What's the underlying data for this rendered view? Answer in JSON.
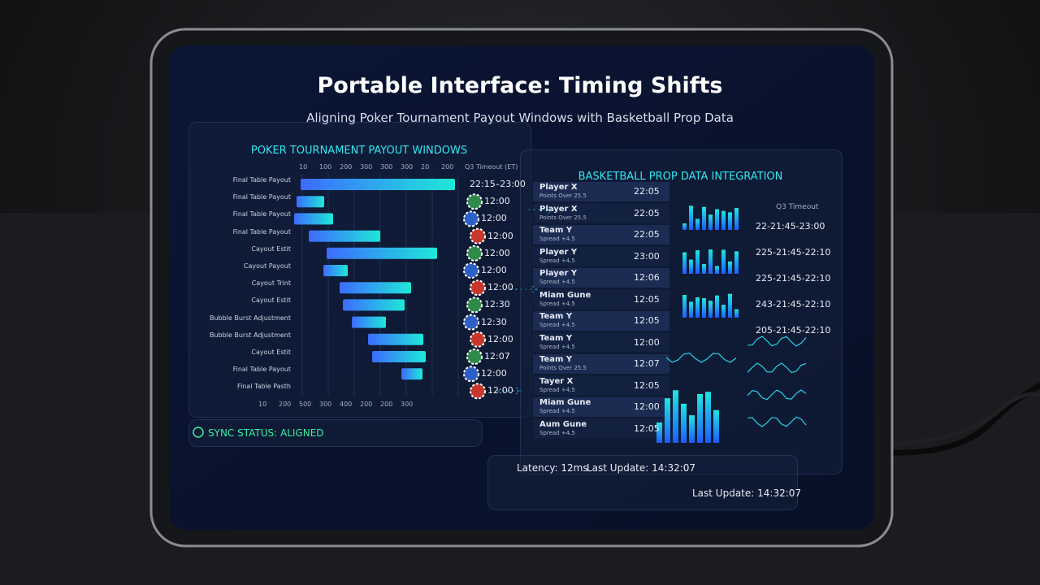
{
  "header": {
    "title": "Portable Interface: Timing Shifts",
    "subtitle": "Aligning Poker Tournament Payout Windows with Basketball Prop Data"
  },
  "poker_panel": {
    "title": "POKER TOURNAMENT PAYOUT WINDOWS",
    "top_axis": [
      "10",
      "100",
      "200",
      "300",
      "300",
      "300",
      "20",
      "200"
    ],
    "column_header": "Q3 Timeout (ET)",
    "rows": [
      {
        "label": "Final Table Payout",
        "time": "22:15–23:00"
      },
      {
        "label": "Final Table Payout",
        "time": "12:00"
      },
      {
        "label": "Final Table Payout",
        "time": "12:00"
      },
      {
        "label": "Final Table Payout",
        "time": "12:00"
      },
      {
        "label": "Cayout Estit",
        "time": "12:00"
      },
      {
        "label": "Cayout Payout",
        "time": "12:00"
      },
      {
        "label": "Cayout Trint",
        "time": "12:00"
      },
      {
        "label": "Cayout Estit",
        "time": "12:30"
      },
      {
        "label": "Bubble Burst Adjustment",
        "time": "12:30"
      },
      {
        "label": "Bubble Burst Adjustment",
        "time": "12:00"
      },
      {
        "label": "Cayout Estit",
        "time": "12:07"
      },
      {
        "label": "Final Table Payout",
        "time": "12:00"
      },
      {
        "label": "Final Table Pasth",
        "time": "12:00"
      }
    ],
    "bottom_axis": [
      "10",
      "200",
      "500",
      "300",
      "400",
      "200",
      "200",
      "300"
    ]
  },
  "basketball_panel": {
    "title": "BASKETBALL PROP DATA INTEGRATION",
    "rows": [
      {
        "name": "Player X",
        "prop": "Points Over 25.5",
        "time": "22:05"
      },
      {
        "name": "Player X",
        "prop": "Points Over 25.5",
        "time": "22:05"
      },
      {
        "name": "Team Y",
        "prop": "Spread +4.5",
        "time": "22:05"
      },
      {
        "name": "Player Y",
        "prop": "Spread +4.5",
        "time": "23:00"
      },
      {
        "name": "Player Y",
        "prop": "Spread +4.5",
        "time": "12:06"
      },
      {
        "name": "Miam Gune",
        "prop": "Spread +4.5",
        "time": "12:05"
      },
      {
        "name": "Team Y",
        "prop": "Spread +4.5",
        "time": "12:05"
      },
      {
        "name": "Team Y",
        "prop": "Spread +4.5",
        "time": "12:00"
      },
      {
        "name": "Team Y",
        "prop": "Points Over 25.5",
        "time": "12:07"
      },
      {
        "name": "Tayer X",
        "prop": "Spread +4.5",
        "time": "12:05"
      },
      {
        "name": "Miam Gune",
        "prop": "Spread +4.5",
        "time": "12:00"
      },
      {
        "name": "Aum Gune",
        "prop": "Spread +4.5",
        "time": "12:05"
      }
    ],
    "timeout_header": "Q3 Timeout",
    "timeouts": [
      "22-21:45-23:00",
      "225-21:45-22:10",
      "225-21:45-22:10",
      "243-21:45-22:10",
      "205-21:45-22:10"
    ]
  },
  "footer": {
    "sync_status": "SYNC STATUS: ALIGNED",
    "latency": "Latency: 12ms",
    "last_update_1": "Last Update: 14:32:07",
    "last_update_2": "Last Update: 14:32:07"
  }
}
